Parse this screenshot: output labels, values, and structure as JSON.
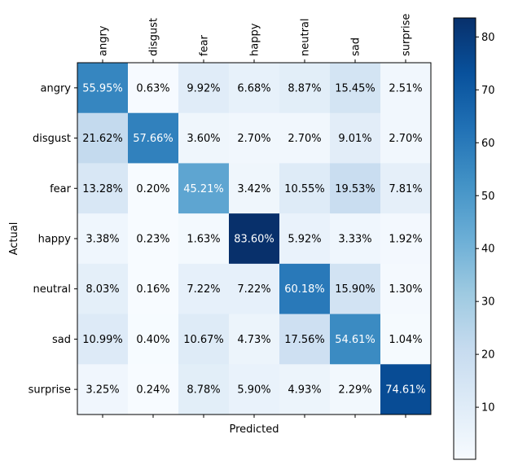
{
  "chart_data": {
    "type": "heatmap",
    "title": "",
    "xlabel": "Predicted",
    "ylabel": "Actual",
    "x_labels": [
      "angry",
      "disgust",
      "fear",
      "happy",
      "neutral",
      "sad",
      "surprise"
    ],
    "y_labels": [
      "angry",
      "disgust",
      "fear",
      "happy",
      "neutral",
      "sad",
      "surprise"
    ],
    "value_format": "percent_2dp",
    "values": [
      [
        55.95,
        0.63,
        9.92,
        6.68,
        8.87,
        15.45,
        2.51
      ],
      [
        21.62,
        57.66,
        3.6,
        2.7,
        2.7,
        9.01,
        2.7
      ],
      [
        13.28,
        0.2,
        45.21,
        3.42,
        10.55,
        19.53,
        7.81
      ],
      [
        3.38,
        0.23,
        1.63,
        83.6,
        5.92,
        3.33,
        1.92
      ],
      [
        8.03,
        0.16,
        7.22,
        7.22,
        60.18,
        15.9,
        1.3
      ],
      [
        10.99,
        0.4,
        10.67,
        4.73,
        17.56,
        54.61,
        1.04
      ],
      [
        3.25,
        0.24,
        8.78,
        5.9,
        4.93,
        2.29,
        74.61
      ]
    ],
    "colormap": "Blues",
    "colorbar": {
      "min": 0.16,
      "max": 83.6,
      "ticks": [
        10,
        20,
        30,
        40,
        50,
        60,
        70,
        80
      ]
    },
    "grid": false,
    "legend": "colorbar-right"
  }
}
